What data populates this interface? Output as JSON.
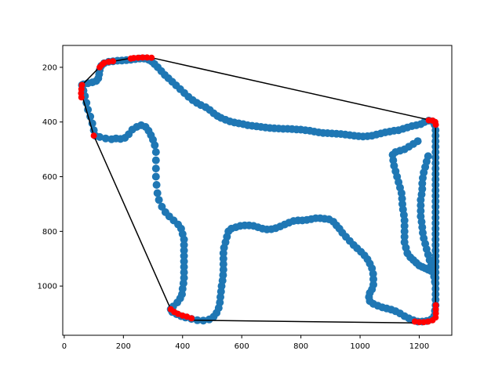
{
  "chart_data": {
    "type": "scatter",
    "title": "",
    "xlabel": "",
    "ylabel": "",
    "xlim": [
      -5,
      1310
    ],
    "ylim": [
      1180,
      120
    ],
    "y_inverted": true,
    "x_ticks": [
      0,
      200,
      400,
      600,
      800,
      1000,
      1200
    ],
    "y_ticks": [
      200,
      400,
      600,
      800,
      1000
    ],
    "grid": false,
    "colors": {
      "contour": "#1f77b4",
      "hull_points": "#ff0000",
      "hull_line": "#000000"
    },
    "contour_points": [
      [
        60,
        265
      ],
      [
        65,
        285
      ],
      [
        70,
        305
      ],
      [
        75,
        330
      ],
      [
        80,
        355
      ],
      [
        88,
        380
      ],
      [
        95,
        405
      ],
      [
        100,
        430
      ],
      [
        105,
        450
      ],
      [
        120,
        455
      ],
      [
        140,
        460
      ],
      [
        160,
        463
      ],
      [
        175,
        460
      ],
      [
        190,
        462
      ],
      [
        205,
        458
      ],
      [
        218,
        445
      ],
      [
        230,
        428
      ],
      [
        245,
        418
      ],
      [
        260,
        412
      ],
      [
        275,
        418
      ],
      [
        285,
        432
      ],
      [
        293,
        448
      ],
      [
        300,
        465
      ],
      [
        306,
        485
      ],
      [
        310,
        510
      ],
      [
        310,
        540
      ],
      [
        310,
        570
      ],
      [
        310,
        600
      ],
      [
        312,
        630
      ],
      [
        315,
        660
      ],
      [
        320,
        685
      ],
      [
        330,
        710
      ],
      [
        342,
        730
      ],
      [
        355,
        745
      ],
      [
        370,
        760
      ],
      [
        385,
        775
      ],
      [
        395,
        790
      ],
      [
        400,
        810
      ],
      [
        405,
        830
      ],
      [
        405,
        850
      ],
      [
        405,
        870
      ],
      [
        405,
        890
      ],
      [
        405,
        910
      ],
      [
        405,
        930
      ],
      [
        405,
        950
      ],
      [
        405,
        970
      ],
      [
        403,
        990
      ],
      [
        400,
        1010
      ],
      [
        398,
        1030
      ],
      [
        392,
        1045
      ],
      [
        382,
        1060
      ],
      [
        368,
        1075
      ],
      [
        360,
        1085
      ],
      [
        365,
        1095
      ],
      [
        380,
        1103
      ],
      [
        395,
        1110
      ],
      [
        410,
        1115
      ],
      [
        430,
        1120
      ],
      [
        450,
        1125
      ],
      [
        470,
        1126
      ],
      [
        490,
        1122
      ],
      [
        505,
        1112
      ],
      [
        515,
        1098
      ],
      [
        522,
        1080
      ],
      [
        526,
        1060
      ],
      [
        528,
        1040
      ],
      [
        530,
        1020
      ],
      [
        532,
        1000
      ],
      [
        535,
        980
      ],
      [
        537,
        960
      ],
      [
        538,
        940
      ],
      [
        538,
        920
      ],
      [
        538,
        900
      ],
      [
        538,
        880
      ],
      [
        540,
        860
      ],
      [
        545,
        840
      ],
      [
        550,
        820
      ],
      [
        555,
        800
      ],
      [
        565,
        790
      ],
      [
        580,
        785
      ],
      [
        595,
        780
      ],
      [
        610,
        778
      ],
      [
        625,
        778
      ],
      [
        640,
        780
      ],
      [
        655,
        785
      ],
      [
        670,
        790
      ],
      [
        685,
        793
      ],
      [
        700,
        792
      ],
      [
        715,
        788
      ],
      [
        730,
        782
      ],
      [
        745,
        775
      ],
      [
        760,
        768
      ],
      [
        775,
        762
      ],
      [
        790,
        760
      ],
      [
        805,
        760
      ],
      [
        820,
        758
      ],
      [
        835,
        755
      ],
      [
        850,
        752
      ],
      [
        865,
        752
      ],
      [
        880,
        754
      ],
      [
        895,
        756
      ],
      [
        910,
        765
      ],
      [
        920,
        778
      ],
      [
        930,
        790
      ],
      [
        940,
        805
      ],
      [
        952,
        820
      ],
      [
        965,
        835
      ],
      [
        978,
        850
      ],
      [
        990,
        862
      ],
      [
        1003,
        875
      ],
      [
        1015,
        888
      ],
      [
        1025,
        902
      ],
      [
        1033,
        918
      ],
      [
        1040,
        935
      ],
      [
        1044,
        955
      ],
      [
        1045,
        975
      ],
      [
        1045,
        995
      ],
      [
        1040,
        1012
      ],
      [
        1033,
        1025
      ],
      [
        1030,
        1040
      ],
      [
        1033,
        1055
      ],
      [
        1045,
        1065
      ],
      [
        1060,
        1072
      ],
      [
        1075,
        1078
      ],
      [
        1090,
        1082
      ],
      [
        1105,
        1086
      ],
      [
        1120,
        1092
      ],
      [
        1135,
        1100
      ],
      [
        1150,
        1110
      ],
      [
        1165,
        1118
      ],
      [
        1180,
        1125
      ],
      [
        1195,
        1130
      ],
      [
        1210,
        1130
      ],
      [
        1225,
        1128
      ],
      [
        1240,
        1122
      ],
      [
        1250,
        1110
      ],
      [
        1253,
        1090
      ],
      [
        1255,
        1070
      ],
      [
        1255,
        1050
      ],
      [
        1255,
        1030
      ],
      [
        1255,
        1010
      ],
      [
        1255,
        990
      ],
      [
        1255,
        970
      ],
      [
        1255,
        950
      ],
      [
        1255,
        930
      ],
      [
        1255,
        910
      ],
      [
        1255,
        890
      ],
      [
        1255,
        870
      ],
      [
        1255,
        850
      ],
      [
        1255,
        830
      ],
      [
        1255,
        810
      ],
      [
        1255,
        790
      ],
      [
        1255,
        770
      ],
      [
        1255,
        750
      ],
      [
        1255,
        730
      ],
      [
        1255,
        710
      ],
      [
        1255,
        690
      ],
      [
        1255,
        670
      ],
      [
        1255,
        650
      ],
      [
        1255,
        630
      ],
      [
        1255,
        610
      ],
      [
        1255,
        590
      ],
      [
        1255,
        570
      ],
      [
        1255,
        550
      ],
      [
        1255,
        530
      ],
      [
        1255,
        510
      ],
      [
        1255,
        490
      ],
      [
        1255,
        470
      ],
      [
        1255,
        450
      ],
      [
        1255,
        430
      ],
      [
        1252,
        410
      ],
      [
        1245,
        398
      ],
      [
        1232,
        395
      ],
      [
        1218,
        400
      ],
      [
        1205,
        408
      ],
      [
        1190,
        412
      ],
      [
        1175,
        415
      ],
      [
        1160,
        420
      ],
      [
        1145,
        425
      ],
      [
        1130,
        430
      ],
      [
        1115,
        432
      ],
      [
        1100,
        435
      ],
      [
        1085,
        438
      ],
      [
        1070,
        442
      ],
      [
        1055,
        446
      ],
      [
        1040,
        450
      ],
      [
        1025,
        452
      ],
      [
        1010,
        453
      ],
      [
        995,
        452
      ],
      [
        980,
        450
      ],
      [
        965,
        448
      ],
      [
        950,
        446
      ],
      [
        935,
        444
      ],
      [
        920,
        443
      ],
      [
        905,
        442
      ],
      [
        890,
        441
      ],
      [
        875,
        440
      ],
      [
        860,
        438
      ],
      [
        845,
        435
      ],
      [
        830,
        432
      ],
      [
        815,
        430
      ],
      [
        800,
        428
      ],
      [
        785,
        427
      ],
      [
        770,
        426
      ],
      [
        755,
        425
      ],
      [
        740,
        425
      ],
      [
        725,
        424
      ],
      [
        710,
        423
      ],
      [
        695,
        422
      ],
      [
        680,
        420
      ],
      [
        665,
        418
      ],
      [
        650,
        416
      ],
      [
        635,
        414
      ],
      [
        620,
        412
      ],
      [
        605,
        408
      ],
      [
        590,
        405
      ],
      [
        575,
        402
      ],
      [
        560,
        398
      ],
      [
        545,
        392
      ],
      [
        530,
        385
      ],
      [
        518,
        378
      ],
      [
        505,
        368
      ],
      [
        492,
        356
      ],
      [
        478,
        346
      ],
      [
        462,
        338
      ],
      [
        448,
        330
      ],
      [
        434,
        320
      ],
      [
        420,
        308
      ],
      [
        406,
        294
      ],
      [
        392,
        280
      ],
      [
        378,
        266
      ],
      [
        365,
        253
      ],
      [
        352,
        240
      ],
      [
        340,
        228
      ],
      [
        328,
        214
      ],
      [
        316,
        200
      ],
      [
        305,
        188
      ],
      [
        295,
        178
      ],
      [
        285,
        172
      ],
      [
        270,
        168
      ],
      [
        255,
        168
      ],
      [
        240,
        170
      ],
      [
        225,
        172
      ],
      [
        210,
        174
      ],
      [
        195,
        175
      ],
      [
        180,
        176
      ],
      [
        165,
        178
      ],
      [
        150,
        180
      ],
      [
        135,
        185
      ],
      [
        125,
        195
      ],
      [
        120,
        210
      ],
      [
        118,
        225
      ],
      [
        115,
        240
      ],
      [
        108,
        250
      ],
      [
        95,
        255
      ],
      [
        80,
        258
      ],
      [
        65,
        262
      ],
      [
        1230,
        525
      ],
      [
        1225,
        545
      ],
      [
        1220,
        565
      ],
      [
        1215,
        585
      ],
      [
        1212,
        605
      ],
      [
        1210,
        625
      ],
      [
        1210,
        645
      ],
      [
        1208,
        665
      ],
      [
        1205,
        685
      ],
      [
        1205,
        705
      ],
      [
        1205,
        725
      ],
      [
        1205,
        745
      ],
      [
        1208,
        765
      ],
      [
        1210,
        785
      ],
      [
        1212,
        805
      ],
      [
        1215,
        825
      ],
      [
        1220,
        845
      ],
      [
        1225,
        865
      ],
      [
        1230,
        885
      ],
      [
        1235,
        905
      ],
      [
        1240,
        925
      ],
      [
        1245,
        945
      ],
      [
        1250,
        965
      ],
      [
        1253,
        985
      ],
      [
        1195,
        470
      ],
      [
        1180,
        480
      ],
      [
        1165,
        490
      ],
      [
        1150,
        500
      ],
      [
        1135,
        505
      ],
      [
        1120,
        510
      ],
      [
        1110,
        520
      ],
      [
        1112,
        540
      ],
      [
        1115,
        560
      ],
      [
        1120,
        580
      ],
      [
        1125,
        600
      ],
      [
        1130,
        620
      ],
      [
        1135,
        640
      ],
      [
        1140,
        660
      ],
      [
        1142,
        680
      ],
      [
        1143,
        700
      ],
      [
        1145,
        720
      ],
      [
        1148,
        740
      ],
      [
        1150,
        760
      ],
      [
        1150,
        780
      ],
      [
        1150,
        800
      ],
      [
        1150,
        820
      ],
      [
        1150,
        840
      ],
      [
        1155,
        860
      ],
      [
        1160,
        880
      ],
      [
        1170,
        895
      ],
      [
        1180,
        905
      ],
      [
        1190,
        915
      ],
      [
        1200,
        925
      ],
      [
        1210,
        930
      ],
      [
        1220,
        935
      ],
      [
        1230,
        940
      ],
      [
        1240,
        945
      ]
    ],
    "hull_points": [
      [
        60,
        265
      ],
      [
        58,
        280
      ],
      [
        57,
        295
      ],
      [
        58,
        310
      ],
      [
        100,
        450
      ],
      [
        360,
        1085
      ],
      [
        372,
        1095
      ],
      [
        385,
        1102
      ],
      [
        400,
        1108
      ],
      [
        415,
        1112
      ],
      [
        430,
        1118
      ],
      [
        1185,
        1130
      ],
      [
        1200,
        1132
      ],
      [
        1215,
        1132
      ],
      [
        1230,
        1130
      ],
      [
        1245,
        1125
      ],
      [
        1255,
        1115
      ],
      [
        1256,
        1100
      ],
      [
        1256,
        1085
      ],
      [
        1256,
        1070
      ],
      [
        1256,
        410
      ],
      [
        1254,
        400
      ],
      [
        1245,
        395
      ],
      [
        1232,
        394
      ],
      [
        295,
        165
      ],
      [
        280,
        164
      ],
      [
        265,
        164
      ],
      [
        250,
        165
      ],
      [
        235,
        166
      ],
      [
        225,
        168
      ],
      [
        165,
        178
      ],
      [
        150,
        180
      ],
      [
        135,
        184
      ],
      [
        128,
        190
      ],
      [
        120,
        200
      ]
    ],
    "hull_polygon": [
      [
        58,
        295
      ],
      [
        100,
        450
      ],
      [
        360,
        1085
      ],
      [
        430,
        1125
      ],
      [
        1185,
        1135
      ],
      [
        1255,
        1120
      ],
      [
        1255,
        410
      ],
      [
        1245,
        395
      ],
      [
        295,
        165
      ],
      [
        235,
        165
      ],
      [
        165,
        178
      ],
      [
        130,
        188
      ],
      [
        60,
        265
      ],
      [
        58,
        295
      ]
    ]
  }
}
